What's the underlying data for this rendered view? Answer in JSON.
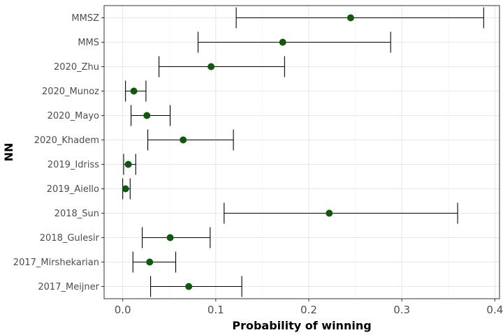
{
  "chart_data": {
    "type": "scatter",
    "subtype": "point-with-error-bars",
    "title": "",
    "xlabel": "Probability of winning",
    "ylabel": "NN",
    "xlim": [
      -0.02,
      0.405
    ],
    "xticks": [
      0.0,
      0.1,
      0.2,
      0.3,
      0.4
    ],
    "xtick_labels": [
      "0.0",
      "0.1",
      "0.2",
      "0.3",
      "0.4"
    ],
    "grid": true,
    "legend": "none",
    "point_color": "#0b5b0b",
    "errorbar_color": "#000000",
    "categories": [
      "MMSZ",
      "MMS",
      "2020_Zhu",
      "2020_Munoz",
      "2020_Mayo",
      "2020_Khadem",
      "2019_Idriss",
      "2019_Aiello",
      "2018_Sun",
      "2018_Gulesir",
      "2017_Mirshekarian",
      "2017_Meijner"
    ],
    "values": [
      0.245,
      0.172,
      0.095,
      0.012,
      0.026,
      0.065,
      0.006,
      0.003,
      0.222,
      0.051,
      0.029,
      0.071
    ],
    "lower": [
      0.122,
      0.081,
      0.039,
      0.003,
      0.009,
      0.027,
      0.001,
      0.0,
      0.109,
      0.021,
      0.011,
      0.03
    ],
    "upper": [
      0.388,
      0.288,
      0.174,
      0.025,
      0.051,
      0.119,
      0.014,
      0.008,
      0.36,
      0.094,
      0.057,
      0.128
    ]
  }
}
